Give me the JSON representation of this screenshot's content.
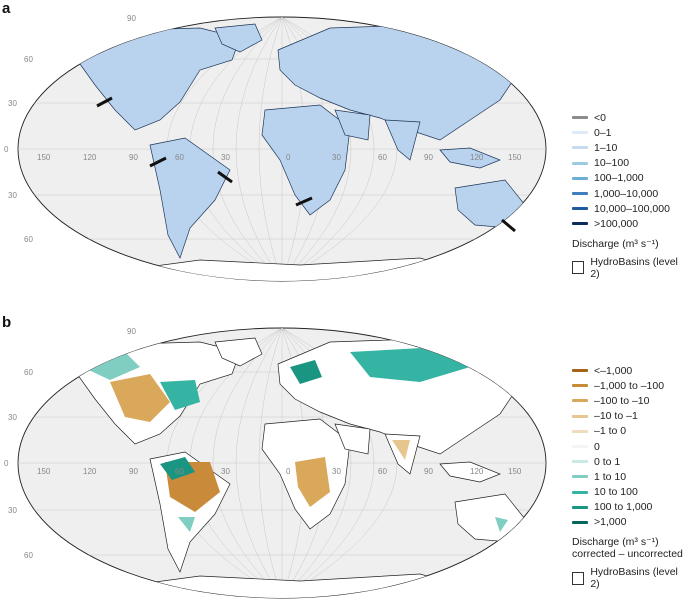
{
  "panel_a": {
    "label": "a",
    "legend": [
      {
        "label": "<0",
        "color": "#8c8c8c"
      },
      {
        "label": "0–1",
        "color": "#deebf7"
      },
      {
        "label": "1–10",
        "color": "#c6dbef"
      },
      {
        "label": "10–100",
        "color": "#9ecae1"
      },
      {
        "label": "100–1,000",
        "color": "#6baed6"
      },
      {
        "label": "1,000–10,000",
        "color": "#3f7fc0"
      },
      {
        "label": "10,000–100,000",
        "color": "#1f5a9e"
      },
      {
        "label": ">100,000",
        "color": "#0b2a5e"
      }
    ],
    "unit_title": "Discharge (m³ s⁻¹)",
    "basins_label": "HydroBasins (level 2)"
  },
  "panel_b": {
    "label": "b",
    "legend": [
      {
        "label": "<–1,000",
        "color": "#a6611a"
      },
      {
        "label": "–1,000 to –100",
        "color": "#c98a3a"
      },
      {
        "label": "–100 to –10",
        "color": "#d9a85a"
      },
      {
        "label": "–10 to –1",
        "color": "#e6c68e"
      },
      {
        "label": "–1 to 0",
        "color": "#efdcbc"
      },
      {
        "label": "0",
        "color": "#f5f5f5"
      },
      {
        "label": "0 to 1",
        "color": "#c7eae5"
      },
      {
        "label": "1 to 10",
        "color": "#80cdc1"
      },
      {
        "label": "10 to 100",
        "color": "#35b3a3"
      },
      {
        "label": "100 to 1,000",
        "color": "#1a9582"
      },
      {
        "label": ">1,000",
        "color": "#01665e"
      }
    ],
    "unit_title": "Discharge (m³ s⁻¹)",
    "unit_subtitle": "corrected – uncorrected",
    "basins_label": "HydroBasins (level 2)"
  },
  "graticule_labels": {
    "top": "90",
    "lat": [
      "60",
      "30",
      "0",
      "30",
      "60"
    ],
    "lon": [
      "150",
      "120",
      "90",
      "60",
      "30",
      "0",
      "30",
      "60",
      "90",
      "120",
      "150"
    ]
  },
  "colors": {
    "ocean": "#efefef",
    "land_a": "#b9d3ee",
    "land_b": "#ffffff",
    "antarctica": "#ffffff"
  }
}
